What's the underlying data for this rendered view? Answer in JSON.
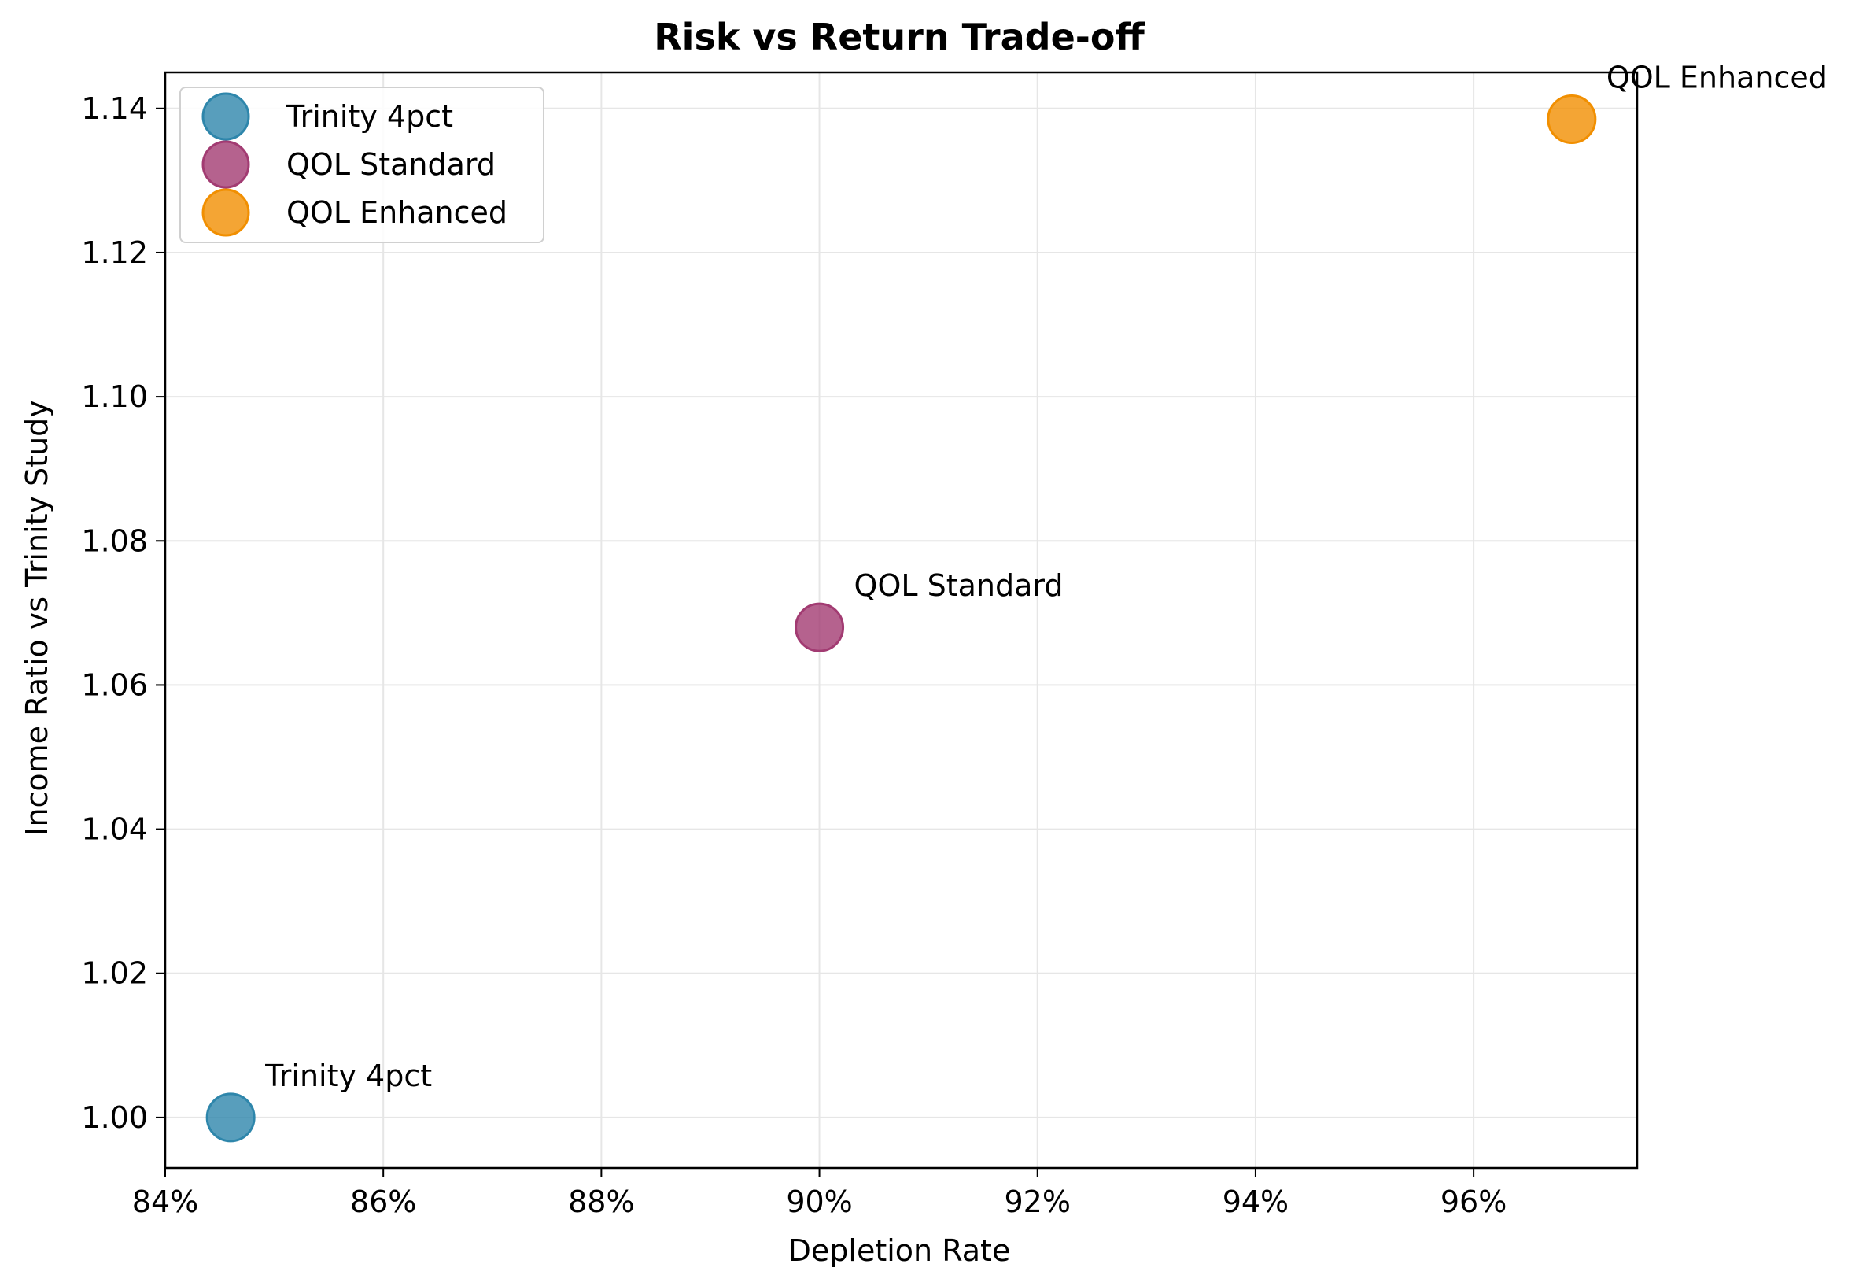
{
  "chart_data": {
    "type": "scatter",
    "title": "Risk vs Return Trade-off",
    "xlabel": "Depletion Rate",
    "ylabel": "Income Ratio vs Trinity Study",
    "xlim": [
      84.0,
      97.5
    ],
    "ylim": [
      0.993,
      1.145
    ],
    "x_ticks": [
      84,
      86,
      88,
      90,
      92,
      94,
      96
    ],
    "x_tick_labels": [
      "84%",
      "86%",
      "88%",
      "90%",
      "92%",
      "94%",
      "96%"
    ],
    "y_ticks": [
      1.0,
      1.02,
      1.04,
      1.06,
      1.08,
      1.1,
      1.12,
      1.14
    ],
    "y_tick_labels": [
      "1.00",
      "1.02",
      "1.04",
      "1.06",
      "1.08",
      "1.10",
      "1.12",
      "1.14"
    ],
    "grid": true,
    "legend_position": "top-left",
    "series": [
      {
        "name": "Trinity 4pct",
        "x": 84.6,
        "y": 1.0,
        "color": "#2e86ab",
        "annotation": "Trinity 4pct"
      },
      {
        "name": "QOL Standard",
        "x": 90.0,
        "y": 1.068,
        "color": "#a23b72",
        "annotation": "QOL Standard"
      },
      {
        "name": "QOL Enhanced",
        "x": 96.9,
        "y": 1.1385,
        "color": "#f18f01",
        "annotation": "QOL Enhanced"
      }
    ]
  }
}
